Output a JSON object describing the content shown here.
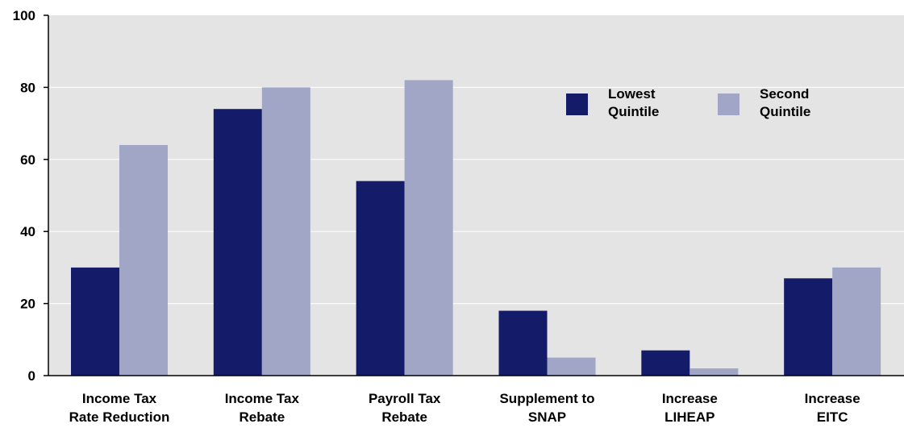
{
  "chart_data": {
    "type": "bar",
    "categories": [
      [
        "Income Tax",
        "Rate Reduction"
      ],
      [
        "Income Tax",
        "Rebate"
      ],
      [
        "Payroll Tax",
        "Rebate"
      ],
      [
        "Supplement to",
        "SNAP"
      ],
      [
        "Increase",
        "LIHEAP"
      ],
      [
        "Increase",
        "EITC"
      ]
    ],
    "series": [
      {
        "name": [
          "Lowest",
          "Quintile"
        ],
        "values": [
          30,
          74,
          54,
          18,
          7,
          27
        ],
        "color": "#141c6a"
      },
      {
        "name": [
          "Second",
          "Quintile"
        ],
        "values": [
          64,
          80,
          82,
          5,
          2,
          30
        ],
        "color": "#a1a5c6"
      }
    ],
    "ylim": [
      0,
      100
    ],
    "yticks": [
      "0",
      "20",
      "40",
      "60",
      "80",
      "100"
    ],
    "grid": true,
    "legend_position": "top-right",
    "plot_background": "#e4e4e4",
    "gridline_color": "#ffffff"
  }
}
